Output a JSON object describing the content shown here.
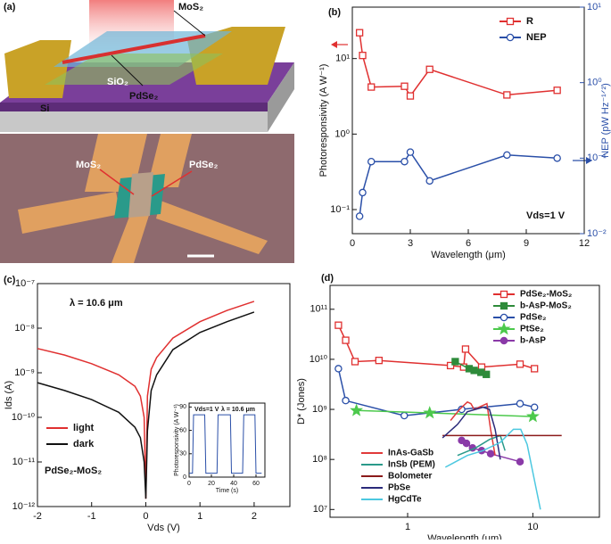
{
  "panel_a": {
    "label": "(a)",
    "labels": [
      "MoS₂",
      "SiO₂",
      "Si",
      "PdSe₂",
      "MoS₂",
      "PdSe₂"
    ]
  },
  "chart_data": [
    {
      "type": "line",
      "panel_label": "(b)",
      "xlabel": "Wavelength (μm)",
      "ylabel": "Photoresponsivity (A W⁻¹)",
      "y2label": "NEP (pW Hz⁻¹ᐟ²)",
      "annotations": [
        "Vds=1 V"
      ],
      "x": [
        0.375,
        0.532,
        0.98,
        2.7,
        3.0,
        4.0,
        8.0,
        10.6
      ],
      "xlim": [
        0,
        12
      ],
      "xticks": [
        0,
        3,
        6,
        9,
        12
      ],
      "ylog": true,
      "ylim": [
        0.048,
        48
      ],
      "yticks": [
        {
          "value": 0.1,
          "label": "10⁻¹"
        },
        {
          "value": 1,
          "label": "10⁰"
        },
        {
          "value": 10,
          "label": "10¹"
        }
      ],
      "y2lim": [
        0.01,
        10
      ],
      "y2ticks": [
        {
          "value": 0.01,
          "label": "10⁻²"
        },
        {
          "value": 0.1,
          "label": "10⁻¹"
        },
        {
          "value": 1,
          "label": "10⁰"
        },
        {
          "value": 10,
          "label": "10¹"
        }
      ],
      "legend": "upper right",
      "series": [
        {
          "name": "R",
          "color": "#e03030",
          "marker": "square",
          "filled": false,
          "values": [
            22,
            11,
            4.2,
            4.3,
            3.2,
            7.2,
            3.3,
            3.8
          ]
        },
        {
          "name": "NEP",
          "color": "#2a4fa8",
          "marker": "circle",
          "filled": false,
          "axis": "y2",
          "values": [
            0.017,
            0.035,
            0.09,
            0.09,
            0.12,
            0.05,
            0.11,
            0.1
          ]
        }
      ]
    },
    {
      "type": "line",
      "panel_label": "(c)",
      "xlabel": "Vds (V)",
      "ylabel": "Ids (A)",
      "annotations": [
        "λ = 10.6 μm",
        "PdSe₂-MoS₂"
      ],
      "x": [
        -2,
        -1.5,
        -1,
        -0.5,
        -0.2,
        -0.1,
        -0.03,
        0,
        0.03,
        0.1,
        0.2,
        0.5,
        1,
        1.5,
        2
      ],
      "xlim": [
        -2,
        2.66
      ],
      "xticks": [
        -2,
        -1,
        0,
        1,
        2
      ],
      "ylog": true,
      "ylim": [
        1e-12,
        1e-07
      ],
      "yticks": [
        {
          "value": 1e-12,
          "label": "10⁻¹²"
        },
        {
          "value": 1e-11,
          "label": "10⁻¹¹"
        },
        {
          "value": 1e-10,
          "label": "10⁻¹⁰"
        },
        {
          "value": 1e-09,
          "label": "10⁻⁹"
        },
        {
          "value": 1e-08,
          "label": "10⁻⁸"
        },
        {
          "value": 1e-07,
          "label": "10⁻⁷"
        }
      ],
      "legend": "lower left",
      "series": [
        {
          "name": "light",
          "color": "#e03030",
          "values": [
            3.5e-09,
            2.5e-09,
            1.6e-09,
            9e-10,
            5e-10,
            3e-10,
            1e-10,
            1.5e-12,
            3e-10,
            1.2e-09,
            2.2e-09,
            6e-09,
            1.4e-08,
            2.5e-08,
            4e-08
          ]
        },
        {
          "name": "dark",
          "color": "#111111",
          "values": [
            6e-10,
            4e-10,
            2.5e-10,
            1.3e-10,
            6e-11,
            3.5e-11,
            1e-11,
            1.5e-12,
            5e-11,
            4e-10,
            9e-10,
            3.3e-09,
            8e-09,
            1.4e-08,
            2.3e-08
          ]
        }
      ]
    },
    {
      "type": "line",
      "xlabel": "Time (s)",
      "ylabel": "Photoresponsivity (A W⁻¹)",
      "annotations": [
        "Vds=1 V",
        "λ = 10.6 μm"
      ],
      "x": [
        0,
        3,
        4,
        14,
        15,
        25,
        26,
        37,
        38,
        48,
        49,
        59,
        60,
        65
      ],
      "xlim": [
        0,
        68
      ],
      "xticks": [
        0,
        20,
        40,
        60
      ],
      "ylim": [
        0,
        95
      ],
      "yticks": [
        0,
        30,
        60,
        90
      ],
      "series": [
        {
          "color": "#2a4fa8",
          "values": [
            5,
            5,
            80,
            80,
            5,
            5,
            80,
            80,
            5,
            5,
            80,
            80,
            5,
            5
          ]
        }
      ]
    },
    {
      "type": "line",
      "panel_label": "(d)",
      "xlabel": "Wavelength (μm)",
      "ylabel": "D* (Jones)",
      "xlog": true,
      "xlim": [
        0.24,
        34
      ],
      "xticks": [
        1,
        10
      ],
      "ylog": true,
      "ylim": [
        7000000.0,
        300000000000.0
      ],
      "yticks": [
        {
          "value": 10000000.0,
          "label": "10⁷"
        },
        {
          "value": 100000000.0,
          "label": "10⁸"
        },
        {
          "value": 1000000000.0,
          "label": "10⁹"
        },
        {
          "value": 10000000000.0,
          "label": "10¹⁰"
        },
        {
          "value": 100000000000.0,
          "label": "10¹¹"
        }
      ],
      "legend": "upper right",
      "series": [
        {
          "name": "PdSe₂-MoS₂",
          "color": "#e03030",
          "marker": "square",
          "filled": false,
          "x": [
            0.28,
            0.32,
            0.38,
            0.59,
            2.2,
            2.8,
            2.9,
            3.9,
            7.9,
            10.3
          ],
          "values": [
            48000000000.0,
            24000000000.0,
            9000000000.0,
            9500000000.0,
            7500000000.0,
            7000000000.0,
            16000000000.0,
            7000000000.0,
            8000000000.0,
            6500000000.0
          ]
        },
        {
          "name": "b-AsP-MoS₂",
          "color": "#2e8b3a",
          "marker": "square",
          "filled": true,
          "x": [
            2.4,
            3.1,
            3.4,
            3.85,
            4.25
          ],
          "values": [
            9000000000.0,
            6500000000.0,
            6000000000.0,
            5500000000.0,
            5000000000.0
          ]
        },
        {
          "name": "PdSe₂",
          "color": "#2a4fa8",
          "marker": "circle",
          "filled": false,
          "x": [
            0.28,
            0.32,
            0.94,
            2.7,
            7.9,
            10.3
          ],
          "values": [
            6500000000.0,
            1500000000.0,
            750000000.0,
            1000000000.0,
            1300000000.0,
            1100000000.0
          ]
        },
        {
          "name": "PtSe₂",
          "color": "#4cc94c",
          "marker": "star",
          "filled": true,
          "x": [
            0.39,
            1.5,
            10
          ],
          "values": [
            950000000.0,
            850000000.0,
            720000000.0
          ]
        },
        {
          "name": "b-AsP",
          "color": "#8a3aa8",
          "marker": "circle",
          "filled": true,
          "x": [
            2.7,
            2.95,
            3.3,
            3.9,
            4.6,
            7.9
          ],
          "values": [
            240000000.0,
            210000000.0,
            170000000.0,
            150000000.0,
            130000000.0,
            90000000.0
          ]
        },
        {
          "name": "InAs-GaSb",
          "color": "#e03a3a",
          "x": [
            2.2,
            2.6,
            3,
            3.2,
            3.4,
            4.0,
            4.3,
            4.6,
            5
          ],
          "values": [
            600000000.0,
            1000000000.0,
            1400000000.0,
            1300000000.0,
            1000000000.0,
            1200000000.0,
            1300000000.0,
            400000000.0,
            120000000.0
          ]
        },
        {
          "name": "InSb (PEM)",
          "color": "#2a9a8a",
          "x": [
            2.5,
            3.5,
            4.5,
            5.5,
            6
          ],
          "values": [
            120000000.0,
            170000000.0,
            250000000.0,
            300000000.0,
            150000000.0
          ]
        },
        {
          "name": "Bolometer",
          "color": "#8b1a1a",
          "x": [
            1.9,
            17
          ],
          "values": [
            300000000.0,
            300000000.0
          ]
        },
        {
          "name": "PbSe",
          "color": "#2a2a7a",
          "x": [
            1.9,
            2.5,
            3,
            4,
            4.5,
            5,
            5.5
          ],
          "values": [
            270000000.0,
            500000000.0,
            900000000.0,
            1100000000.0,
            1000000000.0,
            400000000.0,
            100000000.0
          ]
        },
        {
          "name": "HgCdTe",
          "color": "#4cc8e0",
          "x": [
            2,
            3,
            4,
            5.5,
            7,
            8,
            9,
            10.5,
            11.5
          ],
          "values": [
            70000000.0,
            120000000.0,
            150000000.0,
            220000000.0,
            400000000.0,
            400000000.0,
            200000000.0,
            30000000.0,
            10000000.0
          ]
        }
      ]
    }
  ]
}
